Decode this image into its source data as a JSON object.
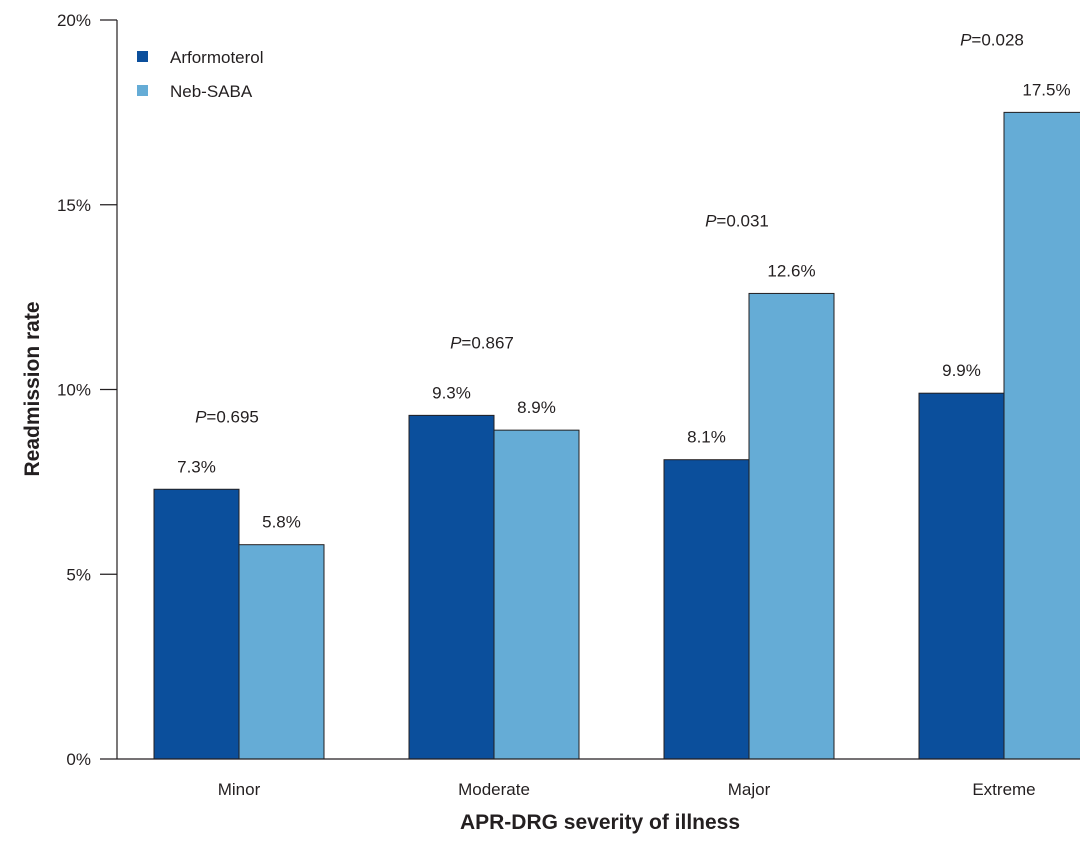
{
  "chart_data": {
    "type": "bar",
    "categories": [
      "Minor",
      "Moderate",
      "Major",
      "Extreme"
    ],
    "series": [
      {
        "name": "Arformoterol",
        "color": "#0b4f9c",
        "values": [
          7.3,
          9.3,
          8.1,
          9.9
        ],
        "labels": [
          "7.3%",
          "9.3%",
          "8.1%",
          "9.9%"
        ]
      },
      {
        "name": "Neb-SABA",
        "color": "#65acd6",
        "values": [
          5.8,
          8.9,
          12.6,
          17.5
        ],
        "labels": [
          "5.8%",
          "8.9%",
          "12.6%",
          "17.5%"
        ]
      }
    ],
    "p_values": [
      {
        "prefix": "P",
        "value": "=0.695"
      },
      {
        "prefix": "P",
        "value": "=0.867"
      },
      {
        "prefix": "P",
        "value": "=0.031"
      },
      {
        "prefix": "P",
        "value": "=0.028"
      }
    ],
    "xlabel": "APR-DRG severity of illness",
    "ylabel": "Readmission rate",
    "ylim": [
      0,
      20
    ],
    "yticks": [
      0,
      5,
      10,
      15,
      20
    ],
    "ytick_labels": [
      "0%",
      "5%",
      "10%",
      "15%",
      "20%"
    ],
    "grid": false,
    "legend_position": "top-left"
  }
}
